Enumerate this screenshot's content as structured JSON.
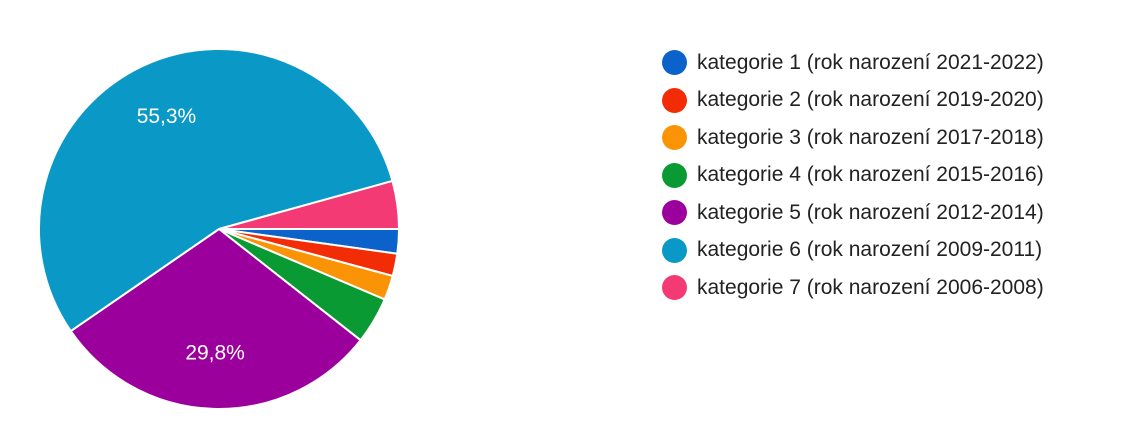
{
  "chart_data": {
    "type": "pie",
    "title": "",
    "legend_position": "right",
    "start_angle_deg": 0,
    "direction": "clockwise",
    "categories": [
      "kategorie 1 (rok narození 2021-2022)",
      "kategorie 2 (rok narození 2019-2020)",
      "kategorie 3 (rok narození 2017-2018)",
      "kategorie 4 (rok narození 2015-2016)",
      "kategorie 5 (rok narození 2012-2014)",
      "kategorie 6 (rok narození 2009-2011)",
      "kategorie 7 (rok narození 2006-2008)"
    ],
    "values": [
      2.2,
      2.0,
      2.2,
      4.2,
      29.8,
      55.3,
      4.3
    ],
    "colors": [
      "#0b62cb",
      "#f22d06",
      "#fa9406",
      "#0a9a33",
      "#9c009c",
      "#0a99c6",
      "#f43a74"
    ],
    "data_labels": [
      "",
      "",
      "",
      "",
      "29,8%",
      "55,3%",
      ""
    ]
  }
}
